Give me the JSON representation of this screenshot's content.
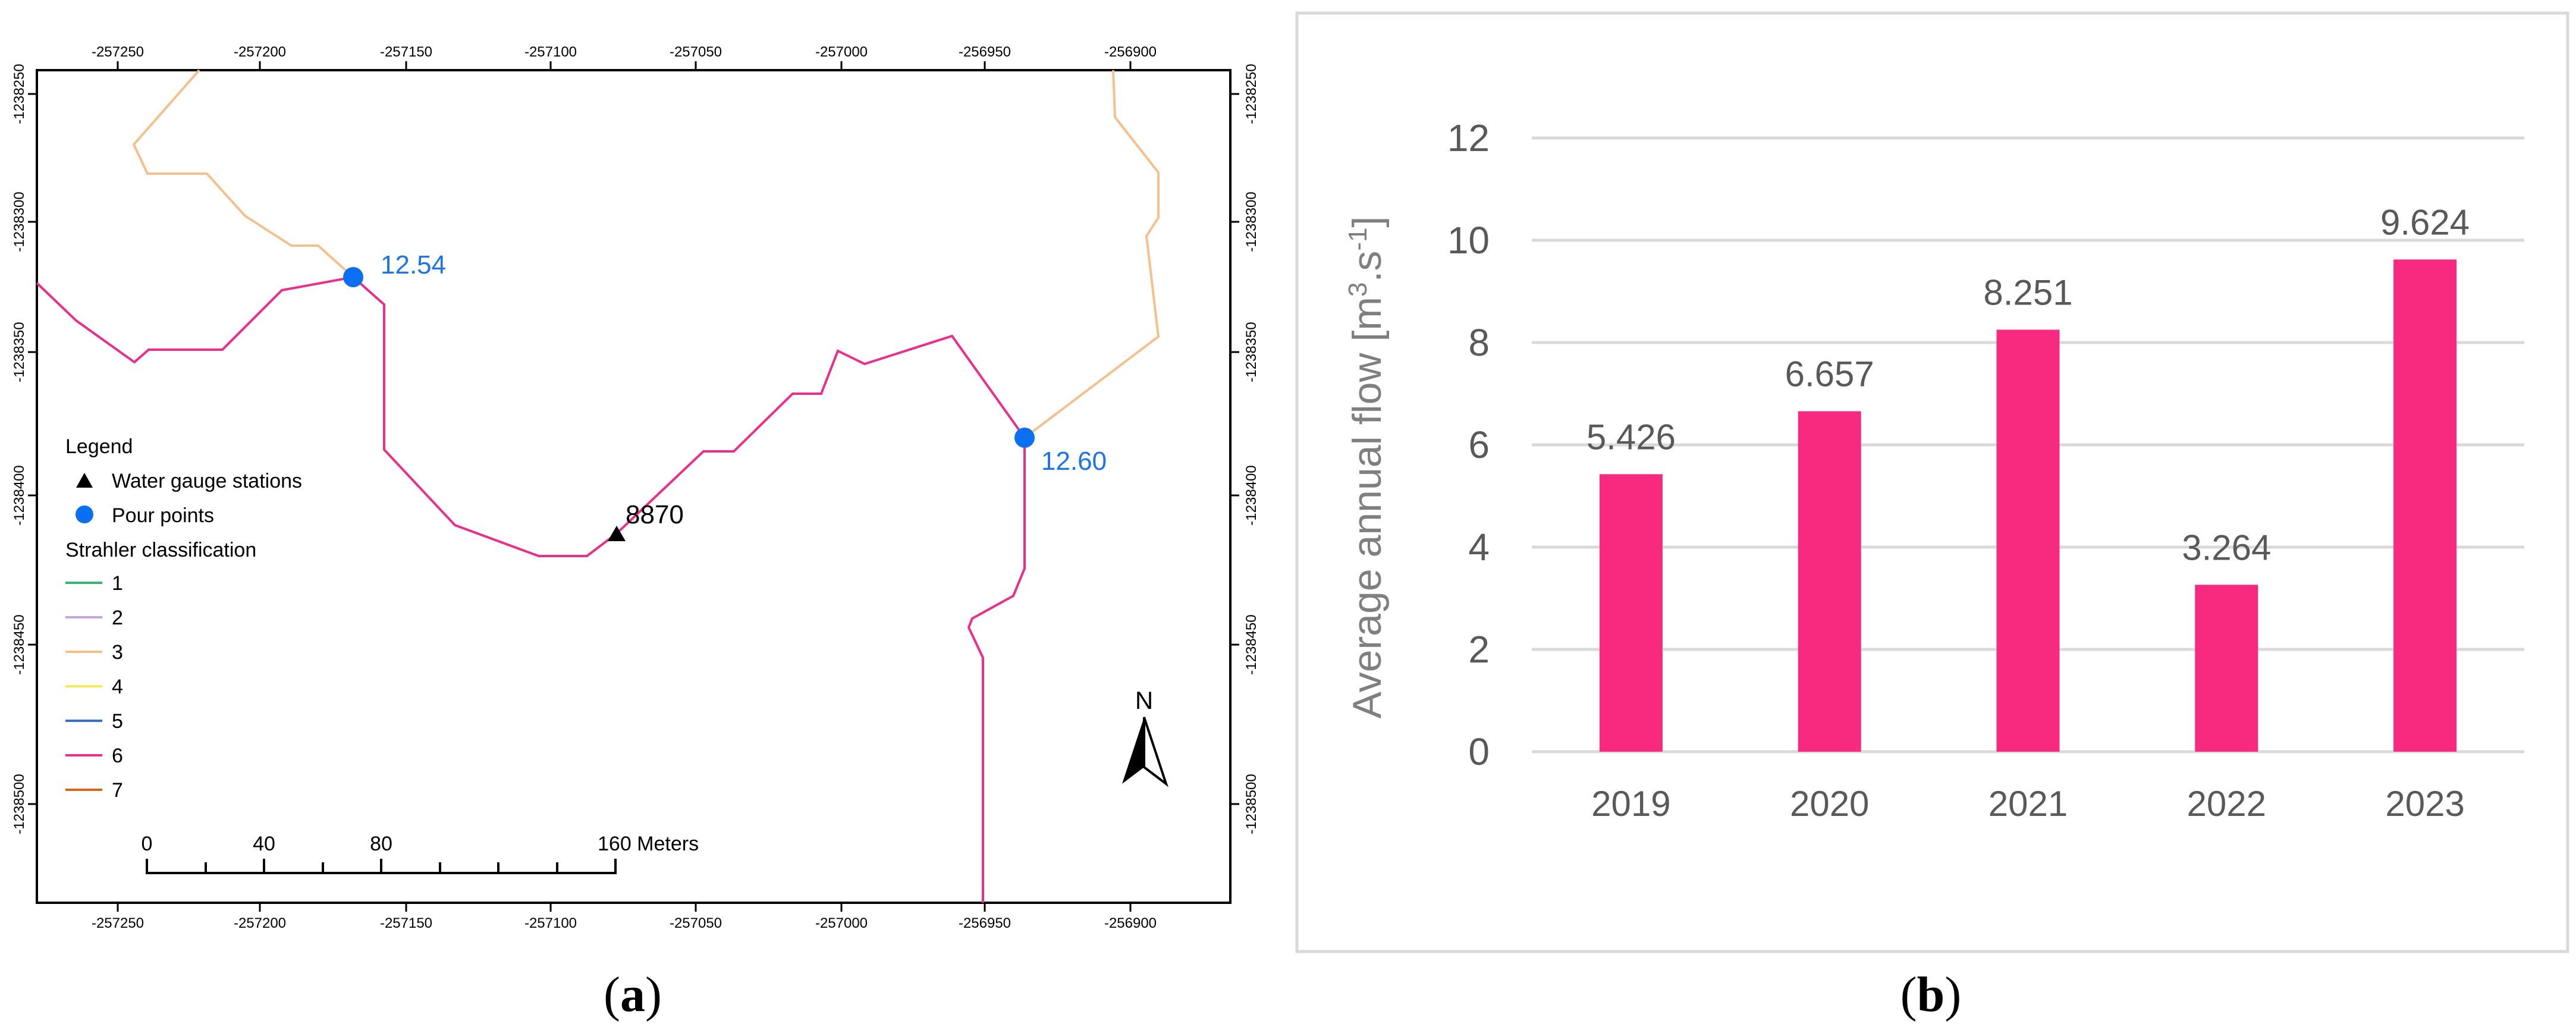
{
  "panel_a": {
    "caption": "a",
    "top_ticks": [
      "-257250",
      "-257200",
      "-257150",
      "-257100",
      "-257050",
      "-257000",
      "-256950",
      "-256900"
    ],
    "bottom_ticks": [
      "-257250",
      "-257200",
      "-257150",
      "-257100",
      "-257050",
      "-257000",
      "-256950",
      "-256900"
    ],
    "left_ticks": [
      "-1238250",
      "-1238300",
      "-1238350",
      "-1238400",
      "-1238450",
      "-1238500"
    ],
    "right_ticks": [
      "-1238250",
      "-1238300",
      "-1238350",
      "-1238400",
      "-1238450",
      "-1238500"
    ],
    "pour_points": [
      {
        "label": "12.54"
      },
      {
        "label": "12.60"
      }
    ],
    "gauge_station": {
      "label": "8870"
    },
    "legend": {
      "title": "Legend",
      "gauge_label": "Water gauge stations",
      "pour_label": "Pour points",
      "strahler_title": "Strahler classification",
      "classes": [
        {
          "label": "1",
          "color": "#3cb371"
        },
        {
          "label": "2",
          "color": "#c7a6d9"
        },
        {
          "label": "3",
          "color": "#f6c08d"
        },
        {
          "label": "4",
          "color": "#f3ec5e"
        },
        {
          "label": "5",
          "color": "#3a6fc4"
        },
        {
          "label": "6",
          "color": "#ec2d8c"
        },
        {
          "label": "7",
          "color": "#d2691e"
        }
      ]
    },
    "scale_bar": {
      "labels": [
        "0",
        "40",
        "80",
        "160 Meters"
      ]
    },
    "north_label": "N",
    "colors": {
      "pour_point": "#0a6ff0",
      "label_blue": "#1b74e8",
      "stream_order_3": "#f6c08d",
      "stream_order_6": "#ec2d8c"
    }
  },
  "panel_b": {
    "caption": "b",
    "chart_data": {
      "type": "bar",
      "categories": [
        "2019",
        "2020",
        "2021",
        "2022",
        "2023"
      ],
      "values": [
        5.426,
        6.657,
        8.251,
        3.264,
        9.624
      ],
      "data_labels": [
        "5.426",
        "6.657",
        "8.251",
        "3.264",
        "9.624"
      ],
      "ylabel": "Average annual flow [m3.s-1]",
      "ylabel_parts": {
        "text": "Average annual flow [m",
        "sup1": "3",
        "mid": ".s",
        "sup2": "-1",
        "end": "]"
      },
      "yticks": [
        "0",
        "2",
        "4",
        "6",
        "8",
        "10",
        "12"
      ],
      "ylim": [
        0,
        12
      ],
      "grid": true,
      "bar_color": "#f72a7f"
    }
  }
}
